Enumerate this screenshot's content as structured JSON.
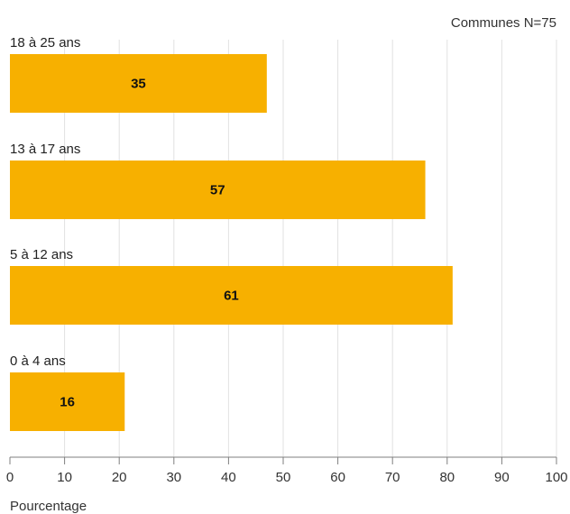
{
  "chart_data": {
    "type": "bar",
    "orientation": "horizontal",
    "note": "Communes N=75",
    "categories": [
      "18  à  25 ans",
      "13  à  17 ans",
      "5  à  12 ans",
      "0  à  4 ans"
    ],
    "values": [
      47,
      76,
      81,
      21
    ],
    "data_labels": [
      "35",
      "57",
      "61",
      "16"
    ],
    "xlabel": "Pourcentage",
    "xlim": [
      0,
      100
    ],
    "xticks": [
      0,
      10,
      20,
      30,
      40,
      50,
      60,
      70,
      80,
      90,
      100
    ],
    "grid": true,
    "bar_color": "#f7b000",
    "grid_color": "#e2e2e2",
    "axis_color": "#7f7f7f"
  }
}
